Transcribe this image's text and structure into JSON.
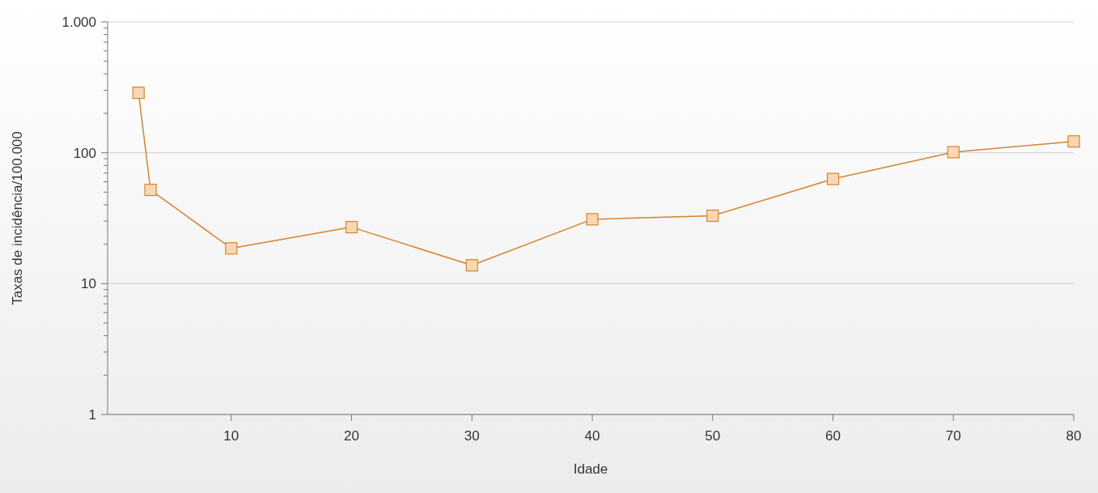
{
  "chart_data": {
    "type": "line",
    "xlabel": "Idade",
    "ylabel": "Taxas de incidência/100.000",
    "x": [
      2.3,
      3.3,
      10,
      20,
      30,
      40,
      50,
      60,
      70,
      80
    ],
    "series": [
      {
        "color": "#d4842f",
        "values": [
          287,
          52,
          18.6,
          27,
          13.8,
          31,
          33,
          63,
          101,
          122
        ]
      }
    ],
    "xlim": [
      0,
      80
    ],
    "xticks": [
      10,
      20,
      30,
      40,
      50,
      60,
      70,
      80
    ],
    "ylim": [
      1,
      1000
    ],
    "yticks": [
      1,
      {
        "value": 2,
        "label": null
      },
      {
        "value": 3,
        "label": null
      },
      {
        "value": 4,
        "label": null
      },
      {
        "value": 5,
        "label": null
      },
      {
        "value": 6,
        "label": null
      },
      {
        "value": 7,
        "label": null
      },
      {
        "value": 8,
        "label": null
      },
      {
        "value": 9,
        "label": null
      },
      10,
      {
        "value": 20,
        "label": null
      },
      {
        "value": 30,
        "label": null
      },
      {
        "value": 40,
        "label": null
      },
      {
        "value": 50,
        "label": null
      },
      {
        "value": 60,
        "label": null
      },
      {
        "value": 70,
        "label": null
      },
      {
        "value": 80,
        "label": null
      },
      {
        "value": 90,
        "label": null
      },
      100,
      {
        "value": 200,
        "label": null
      },
      {
        "value": 300,
        "label": null
      },
      {
        "value": 400,
        "label": null
      },
      {
        "value": 500,
        "label": null
      },
      {
        "value": 600,
        "label": null
      },
      {
        "value": 700,
        "label": null
      },
      {
        "value": 800,
        "label": null
      },
      {
        "value": 900,
        "label": null
      },
      {
        "value": 1000,
        "label": "1.000"
      }
    ],
    "log": "y",
    "grid": "y",
    "marker": "square",
    "line_style": "solid"
  }
}
